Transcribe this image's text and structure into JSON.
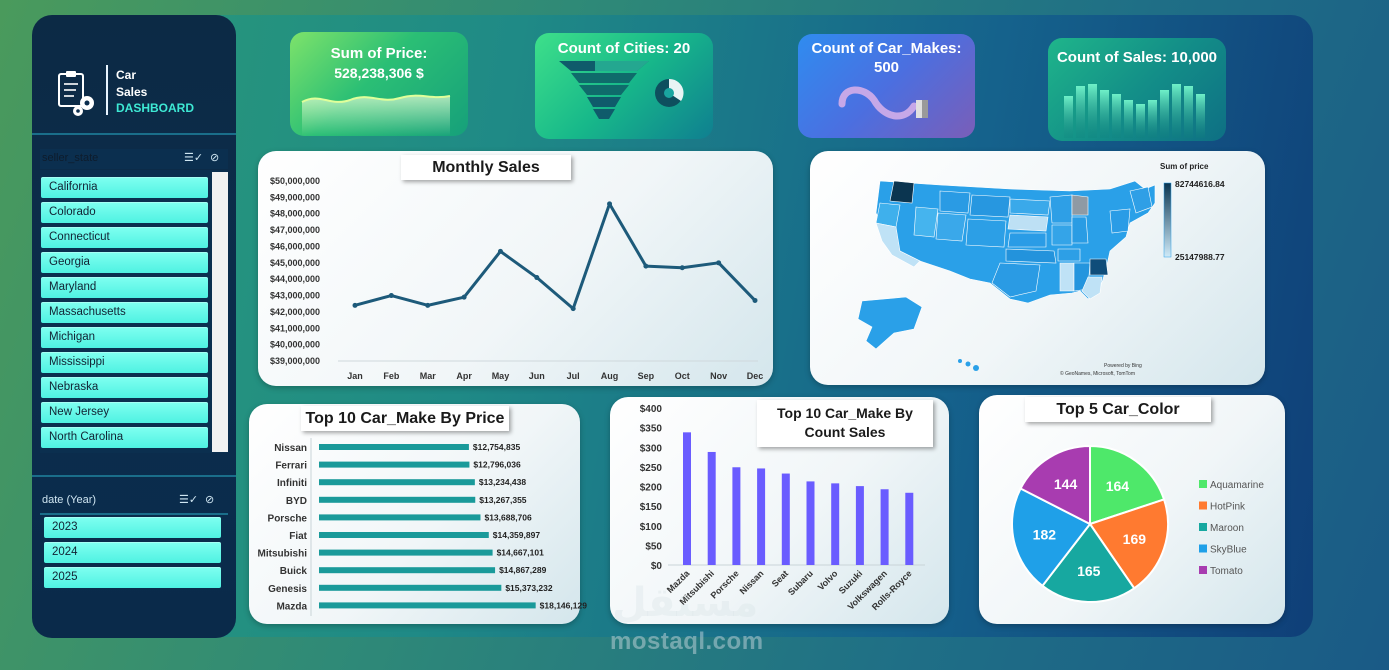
{
  "sidebar": {
    "logo": {
      "line1": "Car",
      "line2": "Sales",
      "line3": "DASHBOARD"
    },
    "state_slicer": {
      "title": "seller_state",
      "items": [
        "California",
        "Colorado",
        "Connecticut",
        "Georgia",
        "Maryland",
        "Massachusetts",
        "Michigan",
        "Mississippi",
        "Nebraska",
        "New Jersey",
        "North Carolina"
      ]
    },
    "year_slicer": {
      "title": "date (Year)",
      "items": [
        "2023",
        "2024",
        "2025"
      ]
    }
  },
  "kpis": {
    "price": {
      "label": "Sum of Price:",
      "value": "528,238,306 $"
    },
    "cities": {
      "label": "Count of Cities: 20"
    },
    "makes": {
      "label": "Count of Car_Makes:",
      "value": "500"
    },
    "sales": {
      "label": "Count of Sales: 10,000"
    }
  },
  "monthly": {
    "title": "Monthly Sales",
    "chart_data": {
      "type": "line",
      "categories": [
        "Jan",
        "Feb",
        "Mar",
        "Apr",
        "May",
        "Jun",
        "Jul",
        "Aug",
        "Sep",
        "Oct",
        "Nov",
        "Dec"
      ],
      "values": [
        42400000,
        43000000,
        42400000,
        42900000,
        45700000,
        44100000,
        42200000,
        48600000,
        44800000,
        44700000,
        45000000,
        42700000
      ],
      "ylim": [
        39000000,
        50000000
      ],
      "ytick_labels": [
        "$50,000,000",
        "$49,000,000",
        "$48,000,000",
        "$47,000,000",
        "$46,000,000",
        "$45,000,000",
        "$44,000,000",
        "$43,000,000",
        "$42,000,000",
        "$41,000,000",
        "$40,000,000",
        "$39,000,000"
      ],
      "color": "#1d5a7a"
    }
  },
  "map": {
    "legend_title": "Sum of price",
    "max_label": "82744616.84",
    "min_label": "25147988.77",
    "credit1": "Powered by Bing",
    "credit2": "© GeoNames, Microsoft, TomTom"
  },
  "top_price": {
    "title": "Top 10 Car_Make By Price",
    "chart_data": {
      "type": "bar",
      "orientation": "horizontal",
      "categories": [
        "Nissan",
        "Ferrari",
        "Infiniti",
        "BYD",
        "Porsche",
        "Fiat",
        "Mitsubishi",
        "Buick",
        "Genesis",
        "Mazda"
      ],
      "values": [
        12754835,
        12796036,
        13234438,
        13267355,
        13688706,
        14359897,
        14667101,
        14867289,
        15373232,
        18146129
      ],
      "labels": [
        "$12,754,835",
        "$12,796,036",
        "$13,234,438",
        "$13,267,355",
        "$13,688,706",
        "$14,359,897",
        "$14,667,101",
        "$14,867,289",
        "$15,373,232",
        "$18,146,129"
      ],
      "color": "#1a9a9a"
    }
  },
  "top_count": {
    "title_line1": "Top 10 Car_Make By",
    "title_line2": "Count Sales",
    "chart_data": {
      "type": "bar",
      "categories": [
        "Mazda",
        "Mitsubishi",
        "Porsche",
        "Nissan",
        "Seat",
        "Subaru",
        "Volvo",
        "Suzuki",
        "Volkswagen",
        "Rolls-Royce"
      ],
      "values": [
        338,
        288,
        249,
        246,
        233,
        213,
        208,
        201,
        193,
        184
      ],
      "ylim": [
        0,
        400
      ],
      "ytick_labels": [
        "$400",
        "$350",
        "$300",
        "$250",
        "$200",
        "$150",
        "$100",
        "$50",
        "$0"
      ],
      "color": "#6a5cff"
    }
  },
  "top_color": {
    "title": "Top 5 Car_Color",
    "chart_data": {
      "type": "pie",
      "slices": [
        {
          "name": "Aquamarine",
          "value": 164,
          "color": "#4ee86a"
        },
        {
          "name": "HotPink",
          "value": 169,
          "color": "#ff7a30"
        },
        {
          "name": "Maroon",
          "value": 165,
          "color": "#17a8a0"
        },
        {
          "name": "SkyBlue",
          "value": 182,
          "color": "#1fa0e8"
        },
        {
          "name": "Tomato",
          "value": 144,
          "color": "#a83cb0"
        }
      ],
      "value_labels": [
        "164",
        "169",
        "165",
        "182",
        "144"
      ]
    }
  },
  "watermark": {
    "text": "mostaql.com",
    "logo": "مستقل"
  }
}
